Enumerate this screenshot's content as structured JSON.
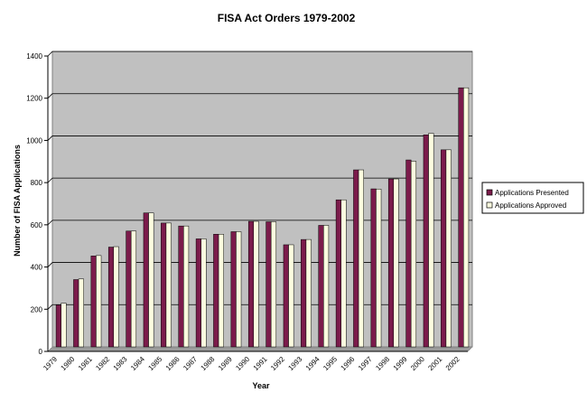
{
  "chart_data": {
    "type": "bar",
    "title": "FISA Act Orders 1979-2002",
    "xlabel": "Year",
    "ylabel": "Number of FISA Applications",
    "ylim": [
      0,
      1400
    ],
    "yticks": [
      0,
      200,
      400,
      600,
      800,
      1000,
      1200,
      1400
    ],
    "grid": true,
    "legend_position": "right",
    "categories": [
      "1979",
      "1980",
      "1981",
      "1982",
      "1983",
      "1984",
      "1985",
      "1986",
      "1987",
      "1988",
      "1989",
      "1990",
      "1991",
      "1992",
      "1993",
      "1994",
      "1995",
      "1996",
      "1997",
      "1998",
      "1999",
      "2000",
      "2001",
      "2002"
    ],
    "series": [
      {
        "name": "Applications Presented",
        "color": "#7b1b4b",
        "values": [
          199,
          319,
          431,
          473,
          549,
          635,
          587,
          573,
          512,
          534,
          546,
          595,
          593,
          484,
          509,
          576,
          697,
          839,
          749,
          796,
          886,
          1005,
          934,
          1228
        ]
      },
      {
        "name": "Applications Approved",
        "color": "#fbfbdf",
        "values": [
          207,
          322,
          433,
          475,
          549,
          635,
          587,
          573,
          512,
          534,
          546,
          595,
          593,
          484,
          509,
          576,
          697,
          839,
          748,
          796,
          880,
          1012,
          934,
          1228
        ]
      }
    ],
    "plot_background": "#c0c0c0"
  }
}
